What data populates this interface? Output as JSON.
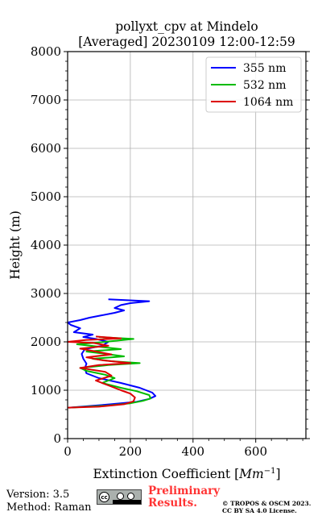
{
  "chart_data": {
    "type": "line",
    "title_line1": "pollyxt_cpv at Mindelo",
    "title_line2": "[Averaged] 20230109 12:00-12:59",
    "xlabel": "Extinction Coefficient [",
    "xlabel_unit": "Mm",
    "xlabel_exp": "−1",
    "xlabel_end": "]",
    "ylabel": "Height (m)",
    "xlim": [
      0,
      760
    ],
    "ylim": [
      0,
      8000
    ],
    "x_ticks": [
      "0",
      "200",
      "400",
      "600"
    ],
    "y_ticks": [
      "0",
      "1000",
      "2000",
      "3000",
      "4000",
      "5000",
      "6000",
      "7000",
      "8000"
    ],
    "grid": true,
    "legend_position": "top-right",
    "series": [
      {
        "name": "355 nm",
        "color": "#0000ff",
        "points": [
          [
            5,
            640
          ],
          [
            120,
            700
          ],
          [
            220,
            760
          ],
          [
            260,
            820
          ],
          [
            280,
            880
          ],
          [
            270,
            950
          ],
          [
            230,
            1050
          ],
          [
            170,
            1150
          ],
          [
            100,
            1250
          ],
          [
            60,
            1350
          ],
          [
            55,
            1450
          ],
          [
            60,
            1550
          ],
          [
            50,
            1650
          ],
          [
            45,
            1750
          ],
          [
            55,
            1850
          ],
          [
            110,
            1920
          ],
          [
            130,
            2000
          ],
          [
            90,
            2060
          ],
          [
            50,
            2100
          ],
          [
            80,
            2150
          ],
          [
            20,
            2200
          ],
          [
            40,
            2280
          ],
          [
            10,
            2350
          ],
          [
            0,
            2400
          ],
          [
            40,
            2450
          ],
          [
            70,
            2500
          ],
          [
            110,
            2550
          ],
          [
            150,
            2600
          ],
          [
            180,
            2650
          ],
          [
            150,
            2700
          ],
          [
            170,
            2760
          ],
          [
            200,
            2800
          ],
          [
            260,
            2840
          ],
          [
            130,
            2880
          ]
        ]
      },
      {
        "name": "532 nm",
        "color": "#00bb00",
        "points": [
          [
            5,
            640
          ],
          [
            120,
            680
          ],
          [
            200,
            730
          ],
          [
            240,
            780
          ],
          [
            265,
            830
          ],
          [
            260,
            900
          ],
          [
            220,
            980
          ],
          [
            170,
            1050
          ],
          [
            110,
            1150
          ],
          [
            150,
            1250
          ],
          [
            120,
            1320
          ],
          [
            60,
            1400
          ],
          [
            40,
            1460
          ],
          [
            130,
            1520
          ],
          [
            230,
            1560
          ],
          [
            140,
            1600
          ],
          [
            80,
            1650
          ],
          [
            180,
            1700
          ],
          [
            110,
            1760
          ],
          [
            60,
            1800
          ],
          [
            170,
            1850
          ],
          [
            100,
            1900
          ],
          [
            30,
            1950
          ],
          [
            120,
            2000
          ],
          [
            210,
            2060
          ],
          [
            100,
            2100
          ]
        ]
      },
      {
        "name": "1064 nm",
        "color": "#dd0000",
        "points": [
          [
            0,
            640
          ],
          [
            100,
            660
          ],
          [
            180,
            710
          ],
          [
            210,
            770
          ],
          [
            215,
            850
          ],
          [
            200,
            930
          ],
          [
            170,
            1000
          ],
          [
            130,
            1100
          ],
          [
            90,
            1200
          ],
          [
            140,
            1300
          ],
          [
            120,
            1380
          ],
          [
            40,
            1460
          ],
          [
            100,
            1520
          ],
          [
            200,
            1560
          ],
          [
            110,
            1620
          ],
          [
            60,
            1680
          ],
          [
            140,
            1740
          ],
          [
            90,
            1800
          ],
          [
            40,
            1860
          ],
          [
            130,
            1920
          ],
          [
            80,
            1980
          ],
          [
            0,
            2000
          ],
          [
            60,
            2040
          ],
          [
            170,
            2070
          ],
          [
            90,
            2110
          ]
        ]
      }
    ]
  },
  "footer": {
    "version": "Version: 3.5",
    "method": "Method: Raman",
    "license_badge_text": "cc",
    "preliminary_line1": "Preliminary",
    "preliminary_line2": "Results.",
    "copyright_line1": "© TROPOS & OSCM 2023.",
    "copyright_line2": "CC BY SA 4.0 License.",
    "preliminary_color": "#ff3333"
  }
}
